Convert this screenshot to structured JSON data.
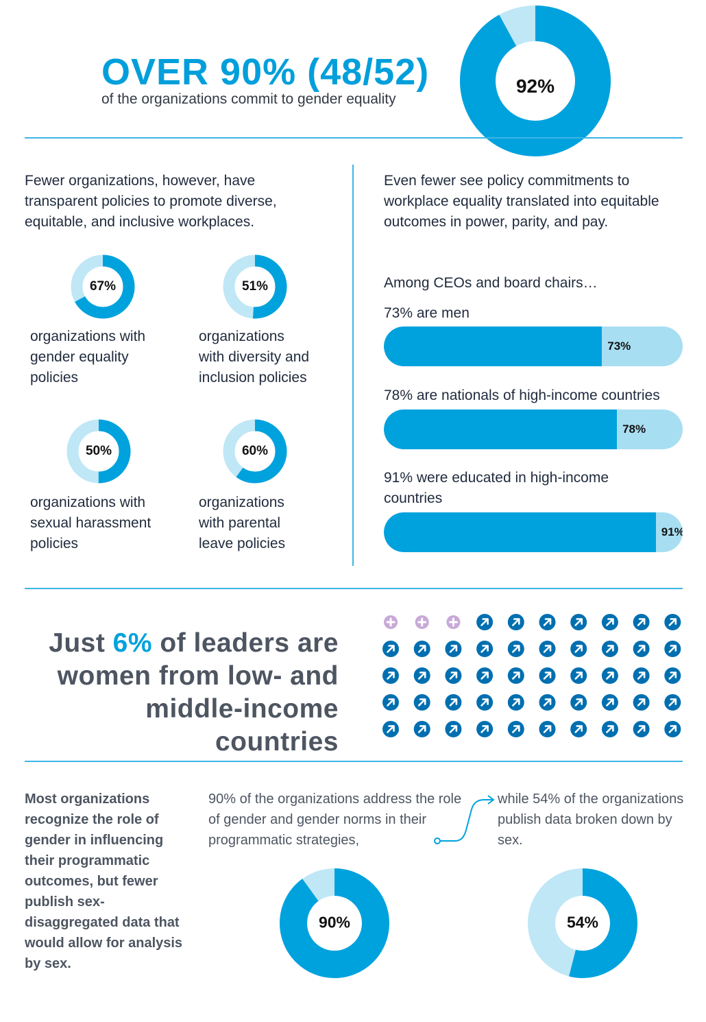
{
  "header": {
    "headline": "OVER 90% (48/52)",
    "subhead": "of the organizations commit to gender equality",
    "donut": {
      "value": 92,
      "label": "92%"
    }
  },
  "left_section": {
    "intro": "Fewer organizations, however, have transparent policies to promote diverse, equitable, and inclusive workplaces.",
    "donuts": [
      {
        "value": 67,
        "label": "67%",
        "caption": [
          "organizations with",
          "gender equality",
          "policies"
        ]
      },
      {
        "value": 51,
        "label": "51%",
        "caption": [
          "organizations",
          "with diversity and",
          "inclusion policies"
        ]
      },
      {
        "value": 50,
        "label": "50%",
        "caption": [
          "organizations with",
          "sexual harassment",
          "policies"
        ]
      },
      {
        "value": 60,
        "label": "60%",
        "caption": [
          "organizations",
          "with parental",
          "leave policies"
        ]
      }
    ]
  },
  "right_section": {
    "intro": "Even fewer see policy commitments to workplace equality translated into equitable outcomes in power, parity, and pay.",
    "lead": "Among CEOs and board chairs…",
    "bars": [
      {
        "label": "73% are men",
        "value": 73,
        "value_label": "73%"
      },
      {
        "label": "78% are nationals of high-income countries",
        "value": 78,
        "value_label": "78%"
      },
      {
        "label": "91% were educated in high-income countries",
        "value": 91,
        "value_label": "91%"
      }
    ]
  },
  "leaders": {
    "pre": "Just ",
    "highlight": "6%",
    "post": " of leaders are women from low- and middle-income countries",
    "icons": {
      "total": 50,
      "highlighted": 3,
      "highlight_icon": "plus-circle-icon",
      "other_icon": "arrow-circle-icon"
    }
  },
  "bottom": {
    "bold_text": "Most organizations recognize the role of gender in influencing their programmatic outcomes, but fewer publish sex-disaggregated data that would allow for analysis by sex.",
    "mid_text": "90% of the organizations address the role of gender and gender norms in their programmatic strategies,",
    "right_text": "while 54% of the organizations publish data broken down by sex.",
    "donuts": [
      {
        "value": 90,
        "label": "90%"
      },
      {
        "value": 54,
        "label": "54%"
      }
    ]
  },
  "colors": {
    "accent": "#00a2dd",
    "track": "#bfe7f6",
    "rule": "#3db5e6",
    "highlight_icon": "#c8a9d8",
    "arrow_icon": "#006fb0"
  },
  "chart_data": [
    {
      "type": "pie",
      "title": "",
      "categories": [
        "commit to gender equality",
        "other"
      ],
      "values": [
        92,
        8
      ]
    },
    {
      "type": "pie",
      "categories": [
        "organizations with gender equality policies",
        "other"
      ],
      "values": [
        67,
        33
      ]
    },
    {
      "type": "pie",
      "categories": [
        "organizations with diversity and inclusion policies",
        "other"
      ],
      "values": [
        51,
        49
      ]
    },
    {
      "type": "pie",
      "categories": [
        "organizations with sexual harassment policies",
        "other"
      ],
      "values": [
        50,
        50
      ]
    },
    {
      "type": "pie",
      "categories": [
        "organizations with parental leave policies",
        "other"
      ],
      "values": [
        60,
        40
      ]
    },
    {
      "type": "bar",
      "categories": [
        "73% are men",
        "78% are nationals of high-income countries",
        "91% were educated in high-income countries"
      ],
      "values": [
        73,
        78,
        91
      ],
      "ylim": [
        0,
        100
      ]
    },
    {
      "type": "pie",
      "categories": [
        "address gender in programmatic strategies",
        "other"
      ],
      "values": [
        90,
        10
      ]
    },
    {
      "type": "pie",
      "categories": [
        "publish sex-disaggregated data",
        "other"
      ],
      "values": [
        54,
        46
      ]
    }
  ]
}
